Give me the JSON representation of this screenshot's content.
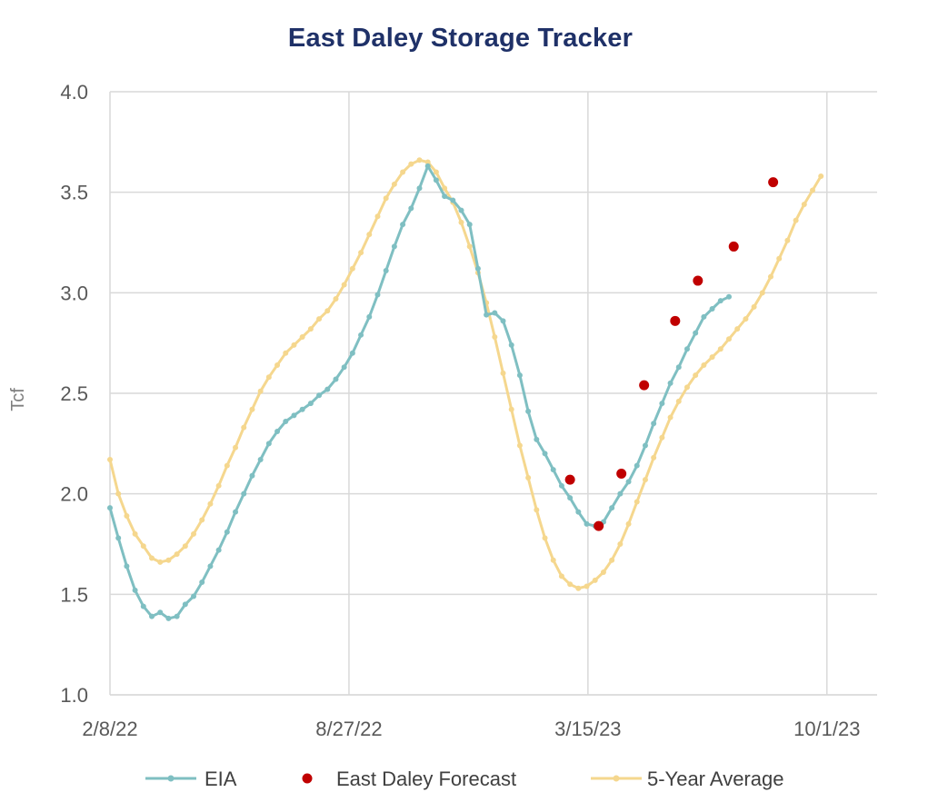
{
  "chart_data": {
    "type": "line",
    "title": "East Daley Storage Tracker",
    "xlabel": "",
    "ylabel": "Tcf",
    "x_tick_labels": [
      "2/8/22",
      "8/27/22",
      "3/15/23",
      "10/1/23"
    ],
    "x_tick_dates": [
      "2022-02-08",
      "2022-08-27",
      "2023-03-15",
      "2023-10-01"
    ],
    "x_range": [
      "2022-02-08",
      "2023-11-12"
    ],
    "ylim": [
      1.0,
      4.0
    ],
    "y_ticks": [
      "1.0",
      "1.5",
      "2.0",
      "2.5",
      "3.0",
      "3.5",
      "4.0"
    ],
    "grid": true,
    "legend_position": "bottom",
    "series": [
      {
        "name": "EIA",
        "type": "line",
        "color": "#7fbfc2",
        "points": [
          [
            "2022-02-08",
            1.93
          ],
          [
            "2022-02-15",
            1.78
          ],
          [
            "2022-02-22",
            1.64
          ],
          [
            "2022-03-01",
            1.52
          ],
          [
            "2022-03-08",
            1.44
          ],
          [
            "2022-03-15",
            1.39
          ],
          [
            "2022-03-22",
            1.41
          ],
          [
            "2022-03-29",
            1.38
          ],
          [
            "2022-04-05",
            1.39
          ],
          [
            "2022-04-12",
            1.45
          ],
          [
            "2022-04-19",
            1.49
          ],
          [
            "2022-04-26",
            1.56
          ],
          [
            "2022-05-03",
            1.64
          ],
          [
            "2022-05-10",
            1.72
          ],
          [
            "2022-05-17",
            1.81
          ],
          [
            "2022-05-24",
            1.91
          ],
          [
            "2022-05-31",
            2.0
          ],
          [
            "2022-06-07",
            2.09
          ],
          [
            "2022-06-14",
            2.17
          ],
          [
            "2022-06-21",
            2.25
          ],
          [
            "2022-06-28",
            2.31
          ],
          [
            "2022-07-05",
            2.36
          ],
          [
            "2022-07-12",
            2.39
          ],
          [
            "2022-07-19",
            2.42
          ],
          [
            "2022-07-26",
            2.45
          ],
          [
            "2022-08-02",
            2.49
          ],
          [
            "2022-08-09",
            2.52
          ],
          [
            "2022-08-16",
            2.57
          ],
          [
            "2022-08-23",
            2.63
          ],
          [
            "2022-08-30",
            2.7
          ],
          [
            "2022-09-06",
            2.79
          ],
          [
            "2022-09-13",
            2.88
          ],
          [
            "2022-09-20",
            2.99
          ],
          [
            "2022-09-27",
            3.11
          ],
          [
            "2022-10-04",
            3.23
          ],
          [
            "2022-10-11",
            3.34
          ],
          [
            "2022-10-18",
            3.42
          ],
          [
            "2022-10-25",
            3.52
          ],
          [
            "2022-11-01",
            3.63
          ],
          [
            "2022-11-08",
            3.56
          ],
          [
            "2022-11-15",
            3.48
          ],
          [
            "2022-11-22",
            3.46
          ],
          [
            "2022-11-29",
            3.41
          ],
          [
            "2022-12-06",
            3.34
          ],
          [
            "2022-12-13",
            3.12
          ],
          [
            "2022-12-20",
            2.89
          ],
          [
            "2022-12-27",
            2.9
          ],
          [
            "2023-01-03",
            2.86
          ],
          [
            "2023-01-10",
            2.74
          ],
          [
            "2023-01-17",
            2.59
          ],
          [
            "2023-01-24",
            2.41
          ],
          [
            "2023-01-31",
            2.27
          ],
          [
            "2023-02-07",
            2.2
          ],
          [
            "2023-02-14",
            2.12
          ],
          [
            "2023-02-21",
            2.04
          ],
          [
            "2023-02-28",
            1.98
          ],
          [
            "2023-03-07",
            1.91
          ],
          [
            "2023-03-14",
            1.85
          ],
          [
            "2023-03-21",
            1.84
          ],
          [
            "2023-03-28",
            1.86
          ],
          [
            "2023-04-04",
            1.93
          ],
          [
            "2023-04-11",
            2.0
          ],
          [
            "2023-04-18",
            2.06
          ],
          [
            "2023-04-25",
            2.14
          ],
          [
            "2023-05-02",
            2.24
          ],
          [
            "2023-05-09",
            2.35
          ],
          [
            "2023-05-16",
            2.45
          ],
          [
            "2023-05-23",
            2.55
          ],
          [
            "2023-05-30",
            2.63
          ],
          [
            "2023-06-06",
            2.72
          ],
          [
            "2023-06-13",
            2.8
          ],
          [
            "2023-06-20",
            2.88
          ],
          [
            "2023-06-27",
            2.92
          ],
          [
            "2023-07-04",
            2.96
          ],
          [
            "2023-07-11",
            2.98
          ]
        ]
      },
      {
        "name": "East Daley Forecast",
        "type": "scatter",
        "color": "#c00000",
        "points": [
          [
            "2023-02-28",
            2.07
          ],
          [
            "2023-03-24",
            1.84
          ],
          [
            "2023-04-12",
            2.1
          ],
          [
            "2023-05-01",
            2.54
          ],
          [
            "2023-05-27",
            2.86
          ],
          [
            "2023-06-15",
            3.06
          ],
          [
            "2023-07-15",
            3.23
          ],
          [
            "2023-08-17",
            3.55
          ]
        ]
      },
      {
        "name": "5-Year Average",
        "type": "line",
        "color": "#f5d78e",
        "points": [
          [
            "2022-02-08",
            2.17
          ],
          [
            "2022-02-15",
            2.0
          ],
          [
            "2022-02-22",
            1.89
          ],
          [
            "2022-03-01",
            1.8
          ],
          [
            "2022-03-08",
            1.74
          ],
          [
            "2022-03-15",
            1.68
          ],
          [
            "2022-03-22",
            1.66
          ],
          [
            "2022-03-29",
            1.67
          ],
          [
            "2022-04-05",
            1.7
          ],
          [
            "2022-04-12",
            1.74
          ],
          [
            "2022-04-19",
            1.8
          ],
          [
            "2022-04-26",
            1.87
          ],
          [
            "2022-05-03",
            1.95
          ],
          [
            "2022-05-10",
            2.04
          ],
          [
            "2022-05-17",
            2.14
          ],
          [
            "2022-05-24",
            2.23
          ],
          [
            "2022-05-31",
            2.33
          ],
          [
            "2022-06-07",
            2.42
          ],
          [
            "2022-06-14",
            2.51
          ],
          [
            "2022-06-21",
            2.58
          ],
          [
            "2022-06-28",
            2.64
          ],
          [
            "2022-07-05",
            2.7
          ],
          [
            "2022-07-12",
            2.74
          ],
          [
            "2022-07-19",
            2.78
          ],
          [
            "2022-07-26",
            2.82
          ],
          [
            "2022-08-02",
            2.87
          ],
          [
            "2022-08-09",
            2.91
          ],
          [
            "2022-08-16",
            2.97
          ],
          [
            "2022-08-23",
            3.04
          ],
          [
            "2022-08-30",
            3.12
          ],
          [
            "2022-09-06",
            3.2
          ],
          [
            "2022-09-13",
            3.29
          ],
          [
            "2022-09-20",
            3.38
          ],
          [
            "2022-09-27",
            3.47
          ],
          [
            "2022-10-04",
            3.54
          ],
          [
            "2022-10-11",
            3.6
          ],
          [
            "2022-10-18",
            3.64
          ],
          [
            "2022-10-25",
            3.66
          ],
          [
            "2022-11-01",
            3.65
          ],
          [
            "2022-11-08",
            3.6
          ],
          [
            "2022-11-15",
            3.52
          ],
          [
            "2022-11-22",
            3.45
          ],
          [
            "2022-11-29",
            3.35
          ],
          [
            "2022-12-06",
            3.23
          ],
          [
            "2022-12-13",
            3.1
          ],
          [
            "2022-12-20",
            2.95
          ],
          [
            "2022-12-27",
            2.78
          ],
          [
            "2023-01-03",
            2.6
          ],
          [
            "2023-01-10",
            2.42
          ],
          [
            "2023-01-17",
            2.24
          ],
          [
            "2023-01-24",
            2.08
          ],
          [
            "2023-01-31",
            1.92
          ],
          [
            "2023-02-07",
            1.78
          ],
          [
            "2023-02-14",
            1.67
          ],
          [
            "2023-02-21",
            1.59
          ],
          [
            "2023-02-28",
            1.55
          ],
          [
            "2023-03-07",
            1.53
          ],
          [
            "2023-03-14",
            1.54
          ],
          [
            "2023-03-21",
            1.57
          ],
          [
            "2023-03-28",
            1.61
          ],
          [
            "2023-04-04",
            1.67
          ],
          [
            "2023-04-11",
            1.75
          ],
          [
            "2023-04-18",
            1.85
          ],
          [
            "2023-04-25",
            1.96
          ],
          [
            "2023-05-02",
            2.07
          ],
          [
            "2023-05-09",
            2.18
          ],
          [
            "2023-05-16",
            2.28
          ],
          [
            "2023-05-23",
            2.38
          ],
          [
            "2023-05-30",
            2.46
          ],
          [
            "2023-06-06",
            2.53
          ],
          [
            "2023-06-13",
            2.59
          ],
          [
            "2023-06-20",
            2.64
          ],
          [
            "2023-06-27",
            2.68
          ],
          [
            "2023-07-04",
            2.72
          ],
          [
            "2023-07-11",
            2.77
          ],
          [
            "2023-07-18",
            2.82
          ],
          [
            "2023-07-25",
            2.87
          ],
          [
            "2023-08-01",
            2.93
          ],
          [
            "2023-08-08",
            3.0
          ],
          [
            "2023-08-15",
            3.08
          ],
          [
            "2023-08-22",
            3.17
          ],
          [
            "2023-08-29",
            3.26
          ],
          [
            "2023-09-05",
            3.36
          ],
          [
            "2023-09-12",
            3.44
          ],
          [
            "2023-09-19",
            3.51
          ],
          [
            "2023-09-26",
            3.58
          ]
        ]
      }
    ]
  }
}
